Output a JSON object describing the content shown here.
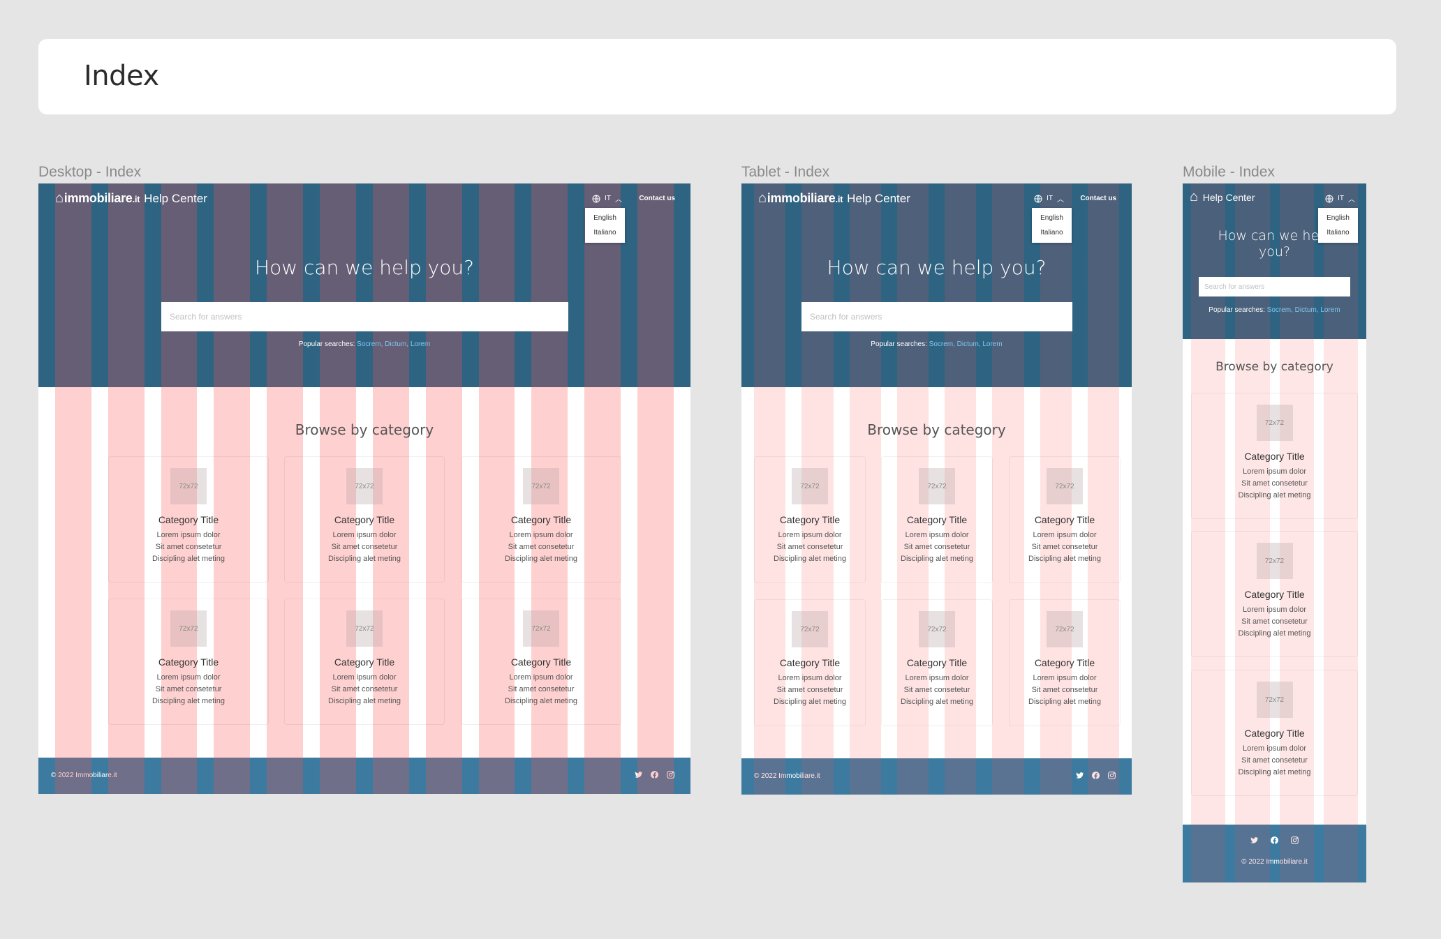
{
  "page": {
    "title": "Index"
  },
  "frames": {
    "desktop": {
      "label": "Desktop - Index"
    },
    "tablet": {
      "label": "Tablet - Index"
    },
    "mobile": {
      "label": "Mobile - Index"
    }
  },
  "site": {
    "brand_main": "immobiliare",
    "brand_tld": ".it",
    "help_center": "Help Center",
    "lang_current": "IT",
    "lang_options": [
      "English",
      "Italiano"
    ],
    "contact": "Contact us",
    "hero_title": "How can we help you?",
    "search_placeholder": "Search for answers",
    "popular_label": "Popular searches:",
    "popular_links": "Socrem, Dictum, Lorem",
    "browse_title": "Browse by category",
    "card": {
      "thumb": "72x72",
      "title": "Category Title",
      "line1": "Lorem ipsum dolor",
      "line2": "Sit amet consetetur",
      "line3": "Discipling alet meting"
    },
    "copyright": "© 2022 Immobiliare.it",
    "social_icons": [
      "twitter-icon",
      "facebook-icon",
      "instagram-icon"
    ]
  },
  "colors": {
    "hero": "#2e6382",
    "footer": "#3c7aa0",
    "grid": "#ff5050",
    "link": "#7fc8f0"
  }
}
